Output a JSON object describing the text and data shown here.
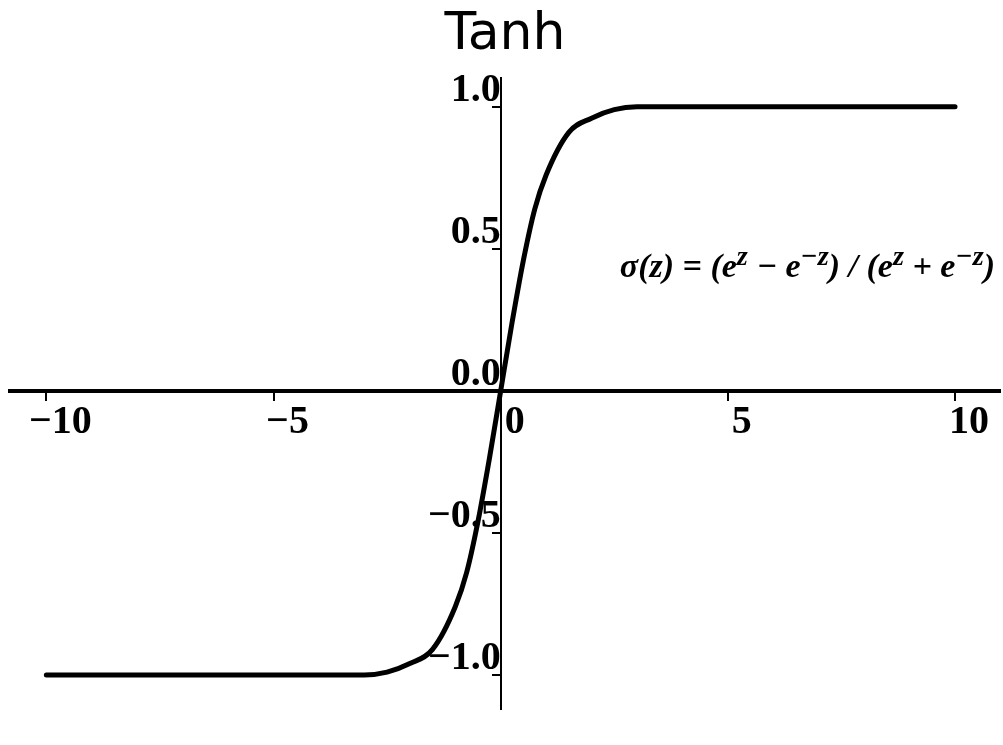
{
  "chart_data": {
    "type": "line",
    "title": "Tanh",
    "x": [
      -10,
      -6,
      -4,
      -3,
      -2.5,
      -2,
      -1.5,
      -1,
      -0.75,
      -0.5,
      -0.25,
      0,
      0.25,
      0.5,
      0.75,
      1,
      1.5,
      2,
      2.5,
      3,
      4,
      6,
      10
    ],
    "series": [
      {
        "color": "#000000",
        "values": [
          -1.0,
          -1.0,
          -1.0,
          -1.0,
          -0.99,
          -0.96,
          -0.91,
          -0.76,
          -0.64,
          -0.46,
          -0.24,
          0.0,
          0.24,
          0.46,
          0.64,
          0.76,
          0.91,
          0.96,
          0.99,
          1.0,
          1.0,
          1.0,
          1.0
        ]
      }
    ],
    "xlim": [
      -10.8,
      10.99
    ],
    "ylim": [
      -1.12,
      1.1
    ],
    "xticks": [
      {
        "value": -10,
        "label": "−10"
      },
      {
        "value": -5,
        "label": "−5"
      },
      0,
      5,
      10
    ],
    "yticks": [
      {
        "value": -1,
        "label": "−1.0"
      },
      {
        "value": -0.5,
        "label": "−0.5"
      },
      {
        "value": 0,
        "label": "0.0"
      },
      {
        "value": 0.5,
        "label": "0.5"
      },
      {
        "value": 1,
        "label": "1.0"
      }
    ],
    "grid": false,
    "legend": false,
    "marker": "none",
    "line_style": "solid",
    "annotations": [
      "σ(z) = (e$^{z}$ − e$^{−z}$) / (e$^{z}$ + e$^{−z}$)"
    ]
  }
}
